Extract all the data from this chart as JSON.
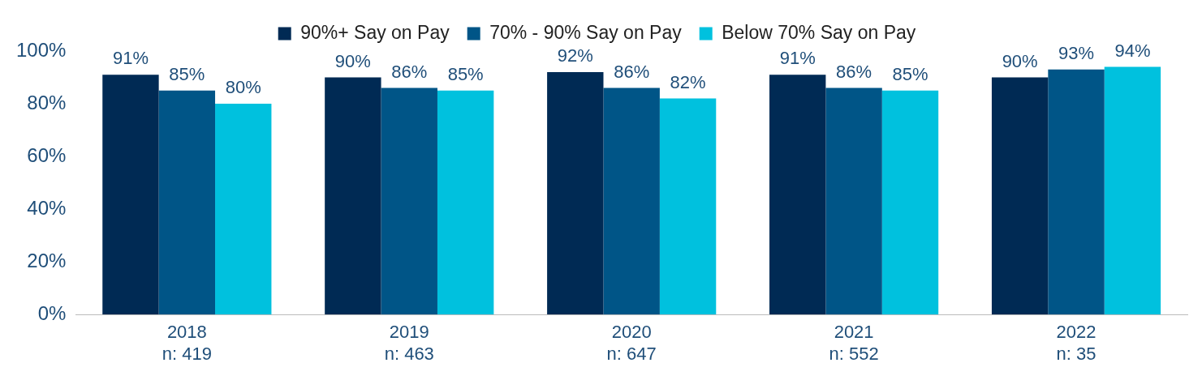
{
  "chart_data": {
    "type": "bar",
    "categories": [
      "2018\nn: 419",
      "2019\nn: 463",
      "2020\nn: 647",
      "2021\nn: 552",
      "2022\nn: 35"
    ],
    "series": [
      {
        "name": "90%+ Say on Pay",
        "color": "#002a54",
        "values": [
          91,
          90,
          92,
          91,
          90
        ],
        "value_labels": [
          "91%",
          "90%",
          "92%",
          "91%",
          "90%"
        ]
      },
      {
        "name": "70% - 90% Say on Pay",
        "color": "#005587",
        "values": [
          85,
          86,
          86,
          86,
          93
        ],
        "value_labels": [
          "85%",
          "86%",
          "86%",
          "86%",
          "93%"
        ]
      },
      {
        "name": "Below 70% Say on Pay",
        "color": "#00c1de",
        "values": [
          80,
          85,
          82,
          85,
          94
        ],
        "value_labels": [
          "80%",
          "85%",
          "82%",
          "85%",
          "94%"
        ]
      }
    ],
    "ylim": [
      0,
      100
    ],
    "yticks": [
      {
        "value": 0,
        "label": "0%"
      },
      {
        "value": 20,
        "label": "20%"
      },
      {
        "value": 40,
        "label": "40%"
      },
      {
        "value": 60,
        "label": "60%"
      },
      {
        "value": 80,
        "label": "80%"
      },
      {
        "value": 100,
        "label": "100%"
      }
    ],
    "grid": false,
    "legend": "top"
  }
}
